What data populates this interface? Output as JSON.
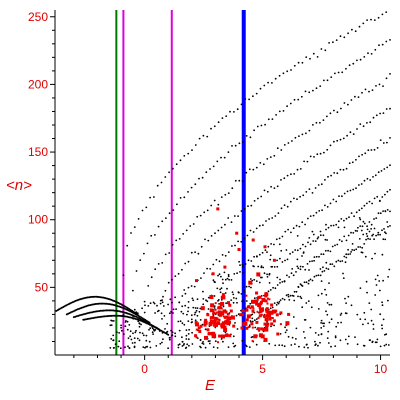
{
  "chart_data": {
    "type": "scatter",
    "xlabel": "E",
    "ylabel": "<n>",
    "xlim": [
      -3.8,
      10.4
    ],
    "ylim": [
      0,
      255
    ],
    "x_ticks": [
      0,
      5,
      10
    ],
    "y_ticks": [
      50,
      100,
      150,
      200,
      250
    ],
    "x_tick_labels": [
      "0",
      "5",
      "10"
    ],
    "y_tick_labels": [
      "50",
      "100",
      "150",
      "200",
      "250"
    ],
    "grid": false,
    "colors": {
      "axis": "#000000",
      "labels": "#e00000",
      "background_points": "#000000",
      "highlight_points": "#ee0000",
      "line_green": "#007a00",
      "line_magenta": "#dd00dd",
      "line_blue": "#0000ff"
    },
    "vertical_lines": [
      {
        "x": -1.2,
        "color": "#007a00",
        "width": "thin"
      },
      {
        "x": -0.9,
        "color": "#dd00dd",
        "width": "thin"
      },
      {
        "x": 1.15,
        "color": "#dd00dd",
        "width": "thin"
      },
      {
        "x": 4.2,
        "color": "#0000ff",
        "width": "thick"
      }
    ],
    "point_bands": {
      "black_curves": [
        {
          "x_start": -0.9,
          "y_start": 60,
          "x_end": 10.4,
          "y_end": 255,
          "power": 0.55
        },
        {
          "x_start": -0.5,
          "y_start": 48,
          "x_end": 10.4,
          "y_end": 232,
          "power": 0.6
        },
        {
          "x_start": 0.0,
          "y_start": 40,
          "x_end": 10.4,
          "y_end": 205,
          "power": 0.65
        },
        {
          "x_start": 0.6,
          "y_start": 34,
          "x_end": 10.4,
          "y_end": 182,
          "power": 0.7
        },
        {
          "x_start": 1.2,
          "y_start": 30,
          "x_end": 10.4,
          "y_end": 160,
          "power": 0.75
        },
        {
          "x_start": 2.0,
          "y_start": 27,
          "x_end": 10.4,
          "y_end": 140,
          "power": 0.8
        },
        {
          "x_start": 2.8,
          "y_start": 25,
          "x_end": 10.4,
          "y_end": 122,
          "power": 0.85
        },
        {
          "x_start": 3.6,
          "y_start": 24,
          "x_end": 10.4,
          "y_end": 108,
          "power": 0.9
        },
        {
          "x_start": 4.5,
          "y_start": 23,
          "x_end": 10.4,
          "y_end": 95,
          "power": 0.95
        }
      ],
      "low_energy_arcs": [
        {
          "x_start": -3.8,
          "y_start": 32,
          "x_peak": -2.1,
          "y_peak": 43,
          "x_end": -0.3,
          "y_end": 30
        },
        {
          "x_start": -3.3,
          "y_start": 30,
          "x_peak": -1.8,
          "y_peak": 38,
          "x_end": 0.2,
          "y_end": 24
        },
        {
          "x_start": -3.0,
          "y_start": 28,
          "x_peak": -1.5,
          "y_peak": 33,
          "x_end": 0.6,
          "y_end": 19
        },
        {
          "x_start": -2.6,
          "y_start": 26,
          "x_peak": -1.2,
          "y_peak": 29,
          "x_end": 1.0,
          "y_end": 15
        }
      ],
      "scatter_region": {
        "x_min": -1.5,
        "x_max": 10.4,
        "y_min": 5,
        "y_max": 120
      },
      "red_clusters": [
        {
          "x": 3.2,
          "y": 28,
          "sx": 0.35,
          "sy": 9,
          "n": 70
        },
        {
          "x": 4.9,
          "y": 30,
          "sx": 0.45,
          "sy": 10,
          "n": 90
        },
        {
          "x": 2.6,
          "y": 22,
          "sx": 0.3,
          "sy": 6,
          "n": 25
        }
      ],
      "red_sparse": [
        {
          "x": 3.1,
          "y": 108
        },
        {
          "x": 4.0,
          "y": 78
        },
        {
          "x": 4.6,
          "y": 85
        },
        {
          "x": 5.1,
          "y": 80
        },
        {
          "x": 3.4,
          "y": 65
        },
        {
          "x": 2.9,
          "y": 60
        },
        {
          "x": 5.5,
          "y": 70
        },
        {
          "x": 6.1,
          "y": 30
        },
        {
          "x": 2.2,
          "y": 55
        },
        {
          "x": 3.9,
          "y": 90
        }
      ]
    }
  }
}
